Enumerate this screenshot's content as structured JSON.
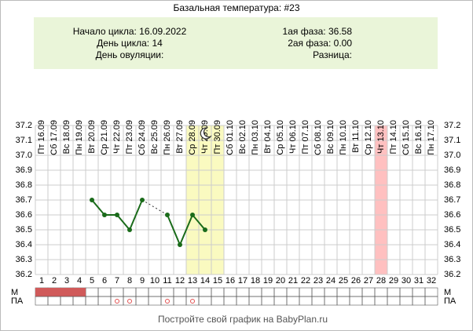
{
  "chart_data": {
    "type": "line",
    "title": "Базальная температура: #23",
    "info_left": [
      "Начало цикла: 16.09.2022",
      "День цикла: 14",
      "День овуляции:"
    ],
    "info_right": [
      "1ая фаза: 36.58",
      "2ая фаза: 0.00",
      "Разница:"
    ],
    "categories": [
      "Пт 16.09",
      "Сб 17.09",
      "Вс 18.09",
      "Пн 19.09",
      "Вт 20.09",
      "Ср 21.09",
      "Чт 22.09",
      "Пт 23.09",
      "Сб 24.09",
      "Вс 25.09",
      "Пн 26.09",
      "Вт 27.09",
      "Ср 28.09",
      "Чт 29.09",
      "Пт 30.09",
      "Сб 01.10",
      "Вс 02.10",
      "Пн 03.10",
      "Вт 04.10",
      "Ср 05.10",
      "Чт 06.10",
      "Пт 07.10",
      "Сб 08.10",
      "Вс 09.10",
      "Пн 10.10",
      "Вт 11.10",
      "Ср 12.10",
      "Чт 13.10",
      "Пт 14.10",
      "Сб 15.10",
      "Вс 16.10",
      "Пн 17.10"
    ],
    "x": [
      1,
      2,
      3,
      4,
      5,
      6,
      7,
      8,
      9,
      10,
      11,
      12,
      13,
      14,
      15,
      16,
      17,
      18,
      19,
      20,
      21,
      22,
      23,
      24,
      25,
      26,
      27,
      28,
      29,
      30,
      31,
      32
    ],
    "series": [
      {
        "color": "#1a6b1a",
        "values": [
          null,
          null,
          null,
          null,
          36.7,
          36.6,
          36.6,
          36.5,
          36.7,
          null,
          36.6,
          36.4,
          36.6,
          36.5,
          null,
          null,
          null,
          null,
          null,
          null,
          null,
          null,
          null,
          null,
          null,
          null,
          null,
          null,
          null,
          null,
          null,
          null
        ]
      }
    ],
    "ylim": [
      36.2,
      37.2
    ],
    "yticks": [
      36.2,
      36.3,
      36.4,
      36.5,
      36.6,
      36.7,
      36.8,
      36.9,
      {
        "value": 37,
        "label": "37.0"
      },
      37.1,
      37.2
    ],
    "grid": true,
    "highlight_days": [
      13,
      14,
      15
    ],
    "highlight_color": "#fafac0",
    "marked_days": [
      28
    ],
    "marked_color": "#ffc0c0",
    "moon_day": 14,
    "rows": [
      {
        "label": "М",
        "days": [
          1,
          2,
          3,
          4
        ],
        "color": "#d05a5a"
      },
      {
        "label": "ПА",
        "days": [
          7,
          8,
          11,
          13
        ],
        "color": "#e05050"
      }
    ],
    "footer": "Постройте свой график на BabyPlan.ru"
  }
}
